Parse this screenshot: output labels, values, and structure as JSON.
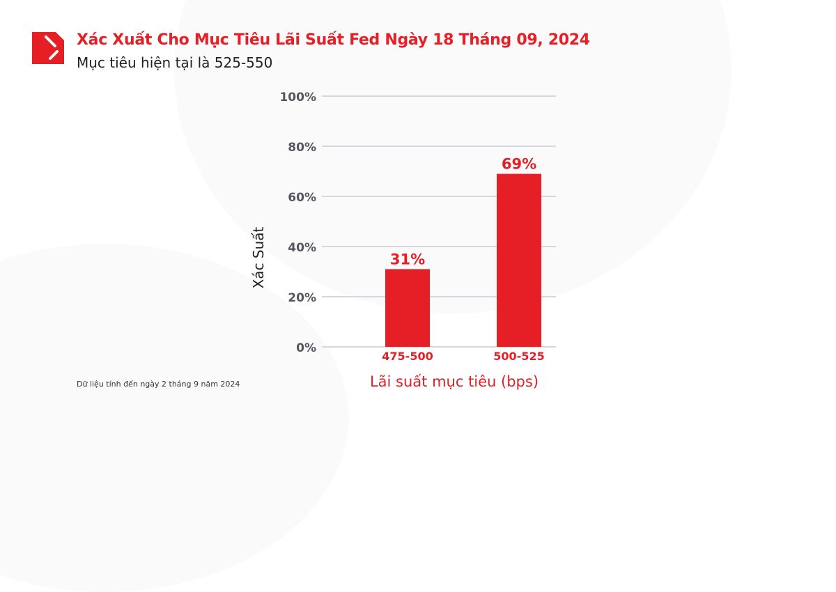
{
  "title": "Xác Xuất Cho Mục Tiêu Lãi Suất Fed Ngày 18 Tháng 09, 2024",
  "subtitle": "Mục tiêu hiện tại là 525-550",
  "footnote": "Dữ liệu tính đến ngày 2 tháng 9 năm 2024",
  "colors": {
    "accent": "#e61e25",
    "grid": "#c9c9d2",
    "axis_text": "#55555f"
  },
  "chart_data": {
    "type": "bar",
    "categories": [
      "475-500",
      "500-525"
    ],
    "values": [
      31,
      69
    ],
    "data_labels": [
      "31%",
      "69%"
    ],
    "xlabel": "Lãi suất mục tiêu (bps)",
    "ylabel": "Xác Suất",
    "ylim": [
      0,
      100
    ],
    "yticks": [
      0,
      20,
      40,
      60,
      80,
      100
    ],
    "ytick_labels": [
      "0%",
      "20%",
      "40%",
      "60%",
      "80%",
      "100%"
    ],
    "grid": true
  }
}
